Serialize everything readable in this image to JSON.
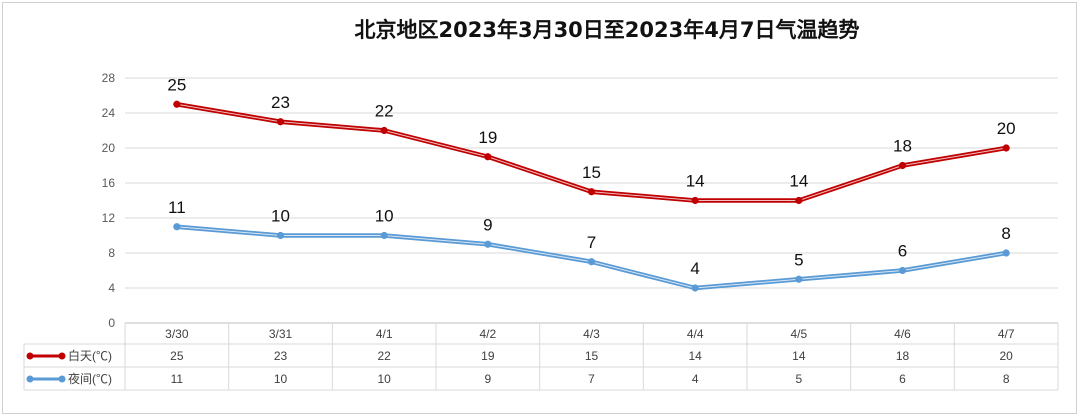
{
  "chart_data": {
    "type": "line",
    "title": "北京地区2023年3月30日至2023年4月7日气温趋势",
    "categories": [
      "3/30",
      "3/31",
      "4/1",
      "4/2",
      "4/3",
      "4/4",
      "4/5",
      "4/6",
      "4/7"
    ],
    "ylim": [
      0,
      28
    ],
    "yticks": [
      0,
      4,
      8,
      12,
      16,
      20,
      24,
      28
    ],
    "grid": true,
    "legend": "data-table-left",
    "series": [
      {
        "name": "白天(℃)",
        "color": "#c00000",
        "values": [
          25,
          23,
          22,
          19,
          15,
          14,
          14,
          18,
          20
        ]
      },
      {
        "name": "夜间(℃)",
        "color": "#5b9bd5",
        "values": [
          11,
          10,
          10,
          9,
          7,
          4,
          5,
          6,
          8
        ]
      }
    ]
  }
}
